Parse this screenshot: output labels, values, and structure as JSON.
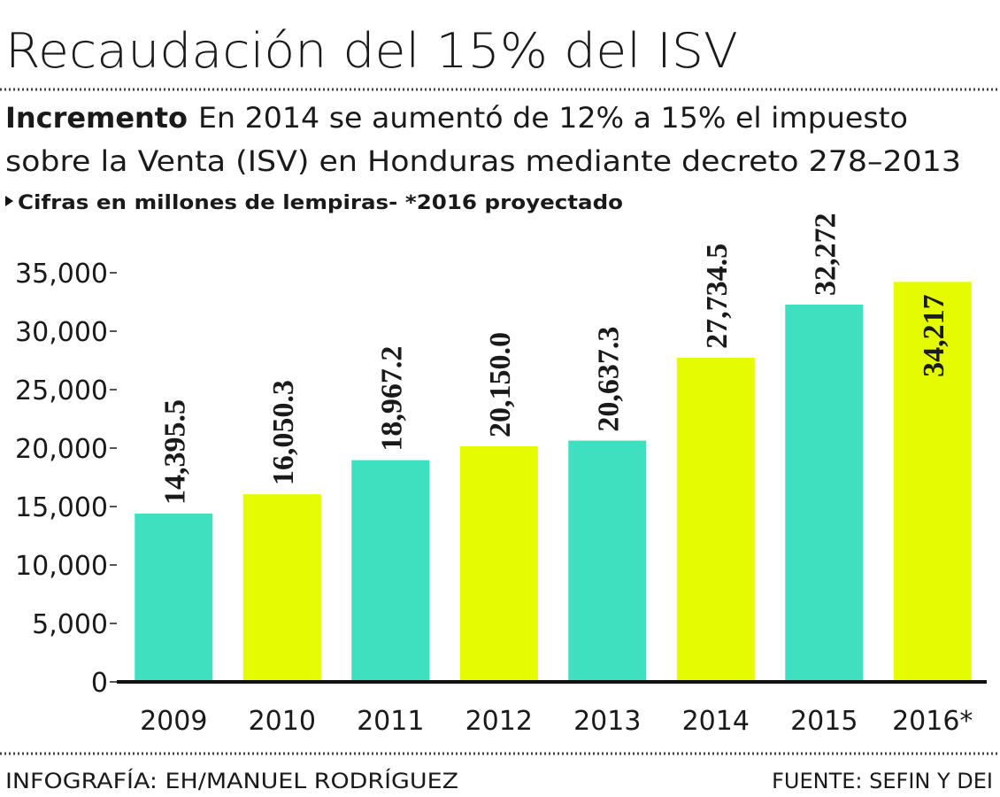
{
  "chart_data": {
    "type": "bar",
    "title": "Recaudación del 15% del ISV",
    "subtitle_lead": "Incremento",
    "subtitle": [
      "En 2014 se aumentó de 12% a 15% el impuesto",
      "sobre la Venta (ISV) en Honduras mediante decreto 278–2013"
    ],
    "note": "Cifras en millones de lempiras- *2016 proyectado",
    "categories": [
      "2009",
      "2010",
      "2011",
      "2012",
      "2013",
      "2014",
      "2015",
      "2016*"
    ],
    "values": [
      14395.5,
      16050.3,
      18967.2,
      20150.0,
      20637.3,
      27734.5,
      32272,
      34217
    ],
    "value_labels": [
      "14,395.5",
      "16,050.3",
      "18,967.2",
      "20,150.0",
      "20,637.3",
      "27,734.5",
      "32,272",
      "34,217"
    ],
    "colors": [
      "#3ee0c0",
      "#e4fb00",
      "#3ee0c0",
      "#e4fb00",
      "#3ee0c0",
      "#e4fb00",
      "#3ee0c0",
      "#e4fb00"
    ],
    "ylim": [
      0,
      35000
    ],
    "yticks": [
      0,
      {
        "value": 5000,
        "label": "5,000"
      },
      {
        "value": 10000,
        "label": "10,000"
      },
      {
        "value": 15000,
        "label": "15,000"
      },
      {
        "value": 20000,
        "label": "20,000"
      },
      {
        "value": 25000,
        "label": "25,000"
      },
      {
        "value": 30000,
        "label": "30,000"
      },
      {
        "value": 35000,
        "label": "35,000"
      }
    ],
    "credit": "INFOGRAFÍA: EH/MANUEL RODRÍGUEZ",
    "source": "FUENTE: SEFIN Y DEI"
  }
}
